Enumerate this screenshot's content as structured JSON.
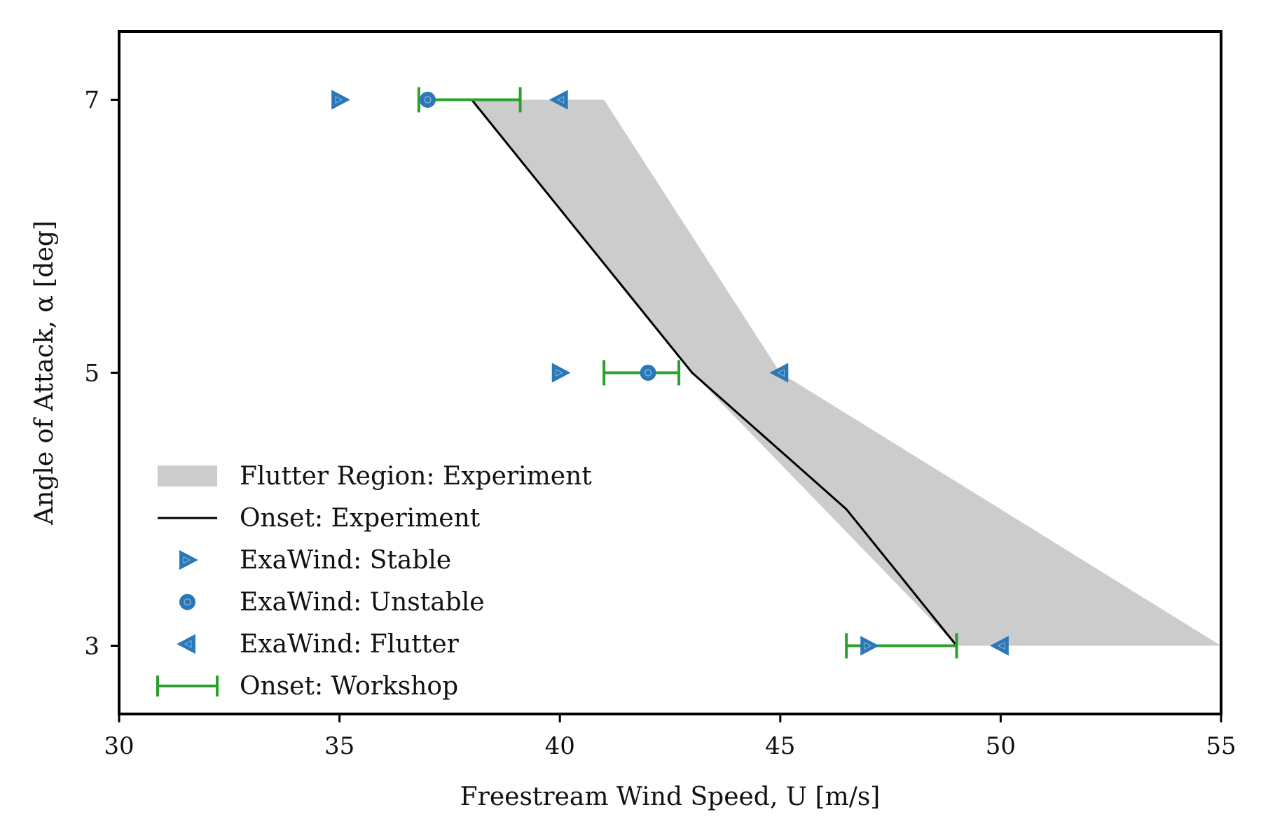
{
  "chart_data": {
    "type": "scatter",
    "title": "",
    "xlabel": "Freestream Wind Speed, U [m/s]",
    "ylabel": "Angle of Attack, α [deg]",
    "xlim": [
      30,
      55
    ],
    "ylim": [
      2.5,
      7.5
    ],
    "xticks": [
      30,
      35,
      40,
      45,
      50,
      55
    ],
    "yticks": [
      3,
      5,
      7
    ],
    "grid": false,
    "legend_position": "lower-left",
    "colors": {
      "flutter_region": "#cccccc",
      "onset_experiment": "#000000",
      "exawind": "#2a78b8",
      "workshop": "#2ca02c"
    },
    "series": [
      {
        "name": "Flutter Region: Experiment",
        "kind": "fill_betweenx",
        "y": [
          3,
          5,
          7
        ],
        "x_left": [
          49.0,
          43.0,
          38.0
        ],
        "x_right": [
          55.0,
          45.0,
          41.0
        ]
      },
      {
        "name": "Onset: Experiment",
        "kind": "line",
        "x": [
          49.0,
          46.5,
          43.0,
          38.0
        ],
        "y": [
          3.0,
          4.0,
          5.0,
          7.0
        ]
      },
      {
        "name": "ExaWind: Stable",
        "kind": "marker",
        "marker": "triangle-right",
        "x": [
          35.0,
          40.0,
          47.0
        ],
        "y": [
          7,
          5,
          3
        ]
      },
      {
        "name": "ExaWind: Unstable",
        "kind": "marker",
        "marker": "circle",
        "x": [
          37.0,
          42.0
        ],
        "y": [
          7,
          5
        ]
      },
      {
        "name": "ExaWind: Flutter",
        "kind": "marker",
        "marker": "triangle-left",
        "x": [
          40.0,
          45.0,
          50.0
        ],
        "y": [
          7,
          5,
          3
        ]
      },
      {
        "name": "Onset: Workshop",
        "kind": "horizontal_errorbar",
        "y": [
          7,
          5,
          3
        ],
        "x_low": [
          36.8,
          41.0,
          46.5
        ],
        "x_high": [
          39.1,
          42.7,
          49.0
        ]
      }
    ]
  }
}
